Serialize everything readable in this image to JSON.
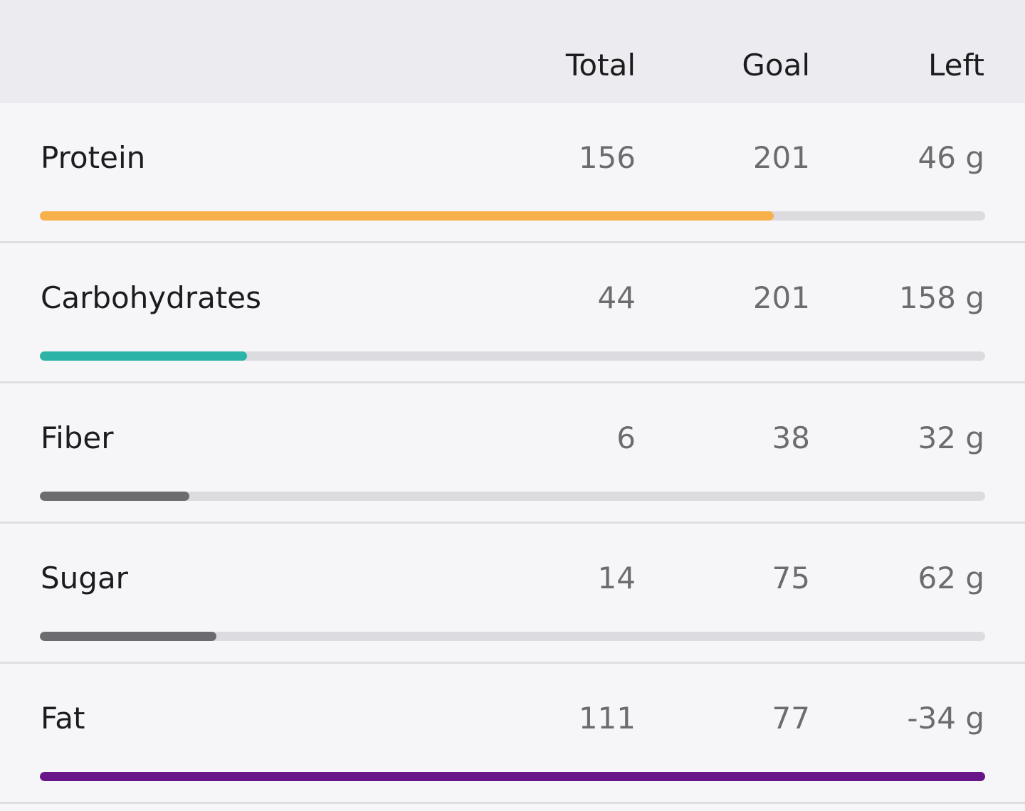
{
  "header": {
    "columns": [
      "Total",
      "Goal",
      "Left"
    ]
  },
  "rows": [
    {
      "name": "Protein",
      "total": 156,
      "goal": 201,
      "left": "46 g",
      "color": "#f7b04a"
    },
    {
      "name": "Carbohydrates",
      "total": 44,
      "goal": 201,
      "left": "158 g",
      "color": "#2bb3a7"
    },
    {
      "name": "Fiber",
      "total": 6,
      "goal": 38,
      "left": "32 g",
      "color": "#6c6c70"
    },
    {
      "name": "Sugar",
      "total": 14,
      "goal": 75,
      "left": "62 g",
      "color": "#6c6c70"
    },
    {
      "name": "Fat",
      "total": 111,
      "goal": 77,
      "left": "-34 g",
      "color": "#6a1489"
    }
  ]
}
